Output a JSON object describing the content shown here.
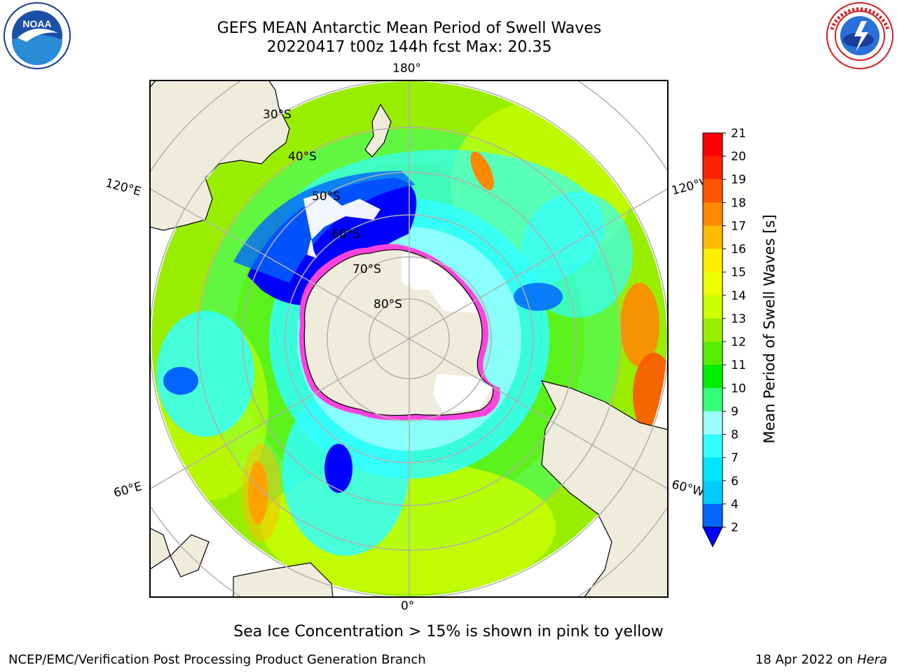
{
  "title": {
    "line1": "GEFS MEAN Antarctic Mean Period of Swell Waves",
    "line2": "20220417 t00z 144h fcst   Max: 20.35"
  },
  "logos": {
    "left": {
      "icon": "noaa-logo-icon",
      "text": "NOAA"
    },
    "right": {
      "icon": "nws-logo-icon"
    }
  },
  "map": {
    "projection": "south-polar-stereographic",
    "longitude_labels": [
      "180°",
      "120°E",
      "120°W",
      "60°E",
      "60°W",
      "0°"
    ],
    "latitude_labels": [
      "30°S",
      "40°S",
      "50°S",
      "60°S",
      "70°S",
      "80°S"
    ],
    "colors": {
      "land": "#efecdc",
      "ice_edge": "#ff44dd",
      "ice_fill": "#ffffff",
      "grid": "#b0b0b0"
    }
  },
  "colorbar": {
    "label": "Mean Period of Swell Waves [s]",
    "ticks": [
      "2",
      "4",
      "6",
      "7",
      "8",
      "9",
      "10",
      "11",
      "12",
      "13",
      "14",
      "15",
      "16",
      "17",
      "18",
      "19",
      "20",
      "21"
    ],
    "colors": [
      "#0000ff",
      "#0066ff",
      "#00ccff",
      "#00e5ff",
      "#33ffff",
      "#99ffff",
      "#33ff77",
      "#00ee00",
      "#55ee00",
      "#99ee00",
      "#ccff00",
      "#eeff00",
      "#ffee00",
      "#ffbb00",
      "#ff8800",
      "#ff5500",
      "#ff2200",
      "#ff0000"
    ],
    "extend": "min"
  },
  "footer": {
    "note": "Sea Ice Concentration > 15% is shown in pink to yellow",
    "credit": "NCEP/EMC/Verification Post Processing Product Generation Branch",
    "date": "18 Apr 2022 on ",
    "host": "Hera"
  }
}
